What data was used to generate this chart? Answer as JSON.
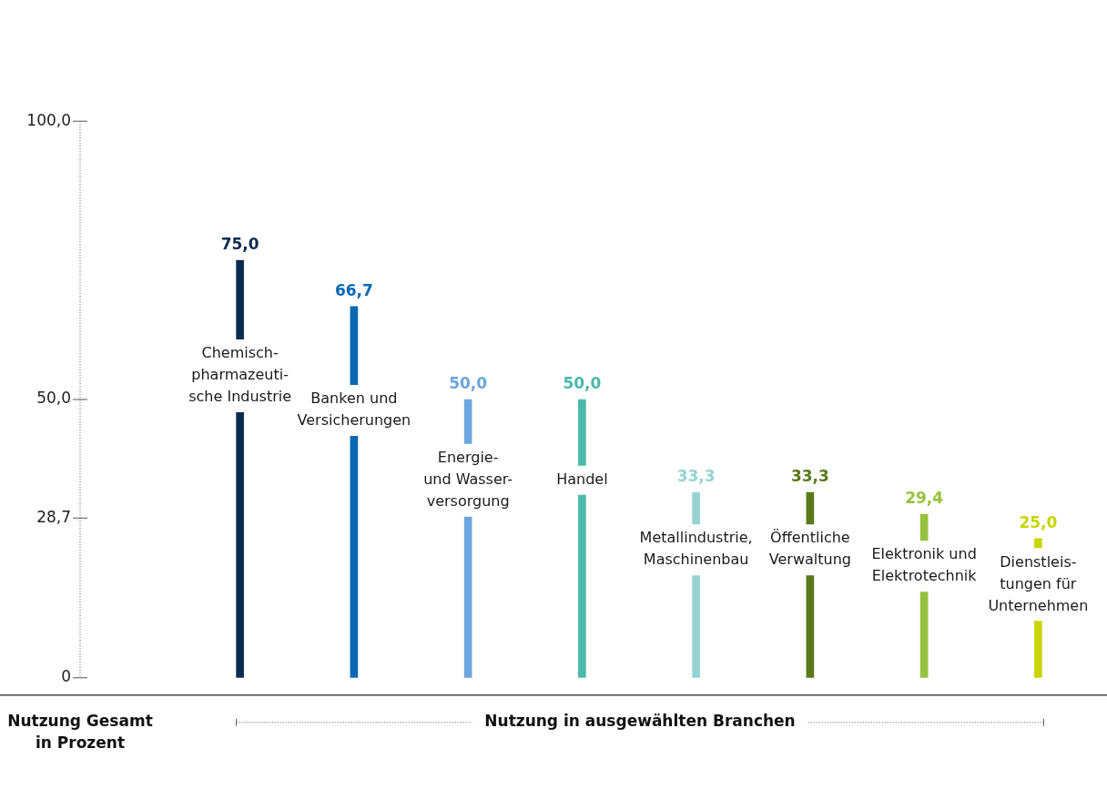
{
  "chart_data": {
    "type": "bar",
    "xlabel": "Nutzung in ausgewählten Branchen",
    "annotations": [
      "Nutzung Gesamt\nin Prozent"
    ],
    "categories": [
      "Chemisch-\npharmazeuti-\nsche Industrie",
      "Banken und\nVersicherungen",
      "Energie-\nund Wasser-\nversorgung",
      "Handel",
      "Metallindustrie,\nMaschinenbau",
      "Öffentliche\nVerwaltung",
      "Elektronik und\nElektrotechnik",
      "Dienstleis-\ntungen für\nUnternehmen"
    ],
    "values": [
      75.0,
      66.7,
      50.0,
      50.0,
      33.3,
      33.3,
      29.4,
      25.0
    ],
    "colors": [
      "#0b2c50",
      "#0a68b2",
      "#6ca6dc",
      "#4bb9a9",
      "#96d3d3",
      "#5a7a1a",
      "#97c23d",
      "#c9d400"
    ],
    "value_labels": [
      "75,0",
      "66,7",
      "50,0",
      "50,0",
      "33,3",
      "33,3",
      "29,4",
      "25,0"
    ],
    "ylim": [
      0,
      100
    ],
    "yticks": [
      {
        "value": 0,
        "label": "0"
      },
      {
        "value": 28.7,
        "label": "28,7"
      },
      {
        "value": 50,
        "label": "50,0"
      },
      {
        "value": 100,
        "label": "100,0"
      }
    ],
    "grid": false,
    "legend": false
  }
}
